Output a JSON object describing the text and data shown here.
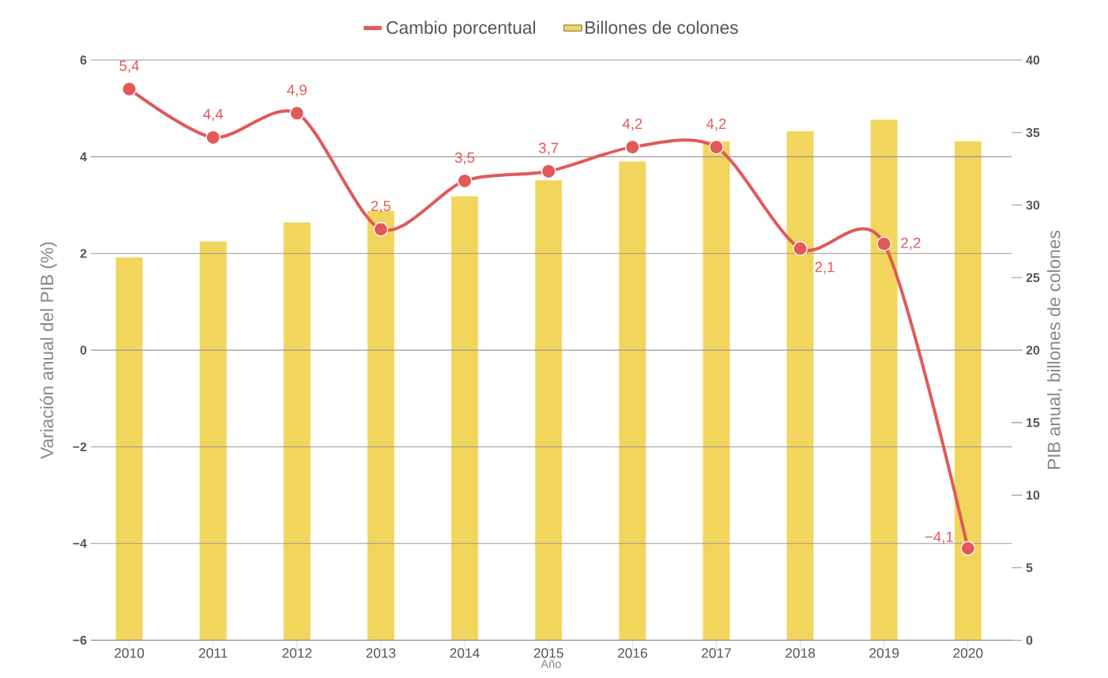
{
  "chart_data": {
    "type": "bar",
    "categories": [
      "2010",
      "2011",
      "2012",
      "2013",
      "2014",
      "2015",
      "2016",
      "2017",
      "2018",
      "2019",
      "2020"
    ],
    "series": [
      {
        "name": "Cambio porcentual",
        "type": "line",
        "color": "#e05a5a",
        "values": [
          5.4,
          4.4,
          4.9,
          2.5,
          3.5,
          3.7,
          4.2,
          4.2,
          2.1,
          2.2,
          -4.1
        ],
        "value_labels": [
          "5,4",
          "4,4",
          "4,9",
          "2,5",
          "3,5",
          "3,7",
          "4,2",
          "4,2",
          "2,1",
          "2,2",
          "−4,1"
        ],
        "marker": "circle"
      },
      {
        "name": "Billones de colones",
        "axis": "y2",
        "color": "#f2d55c",
        "values": [
          26.4,
          27.5,
          28.8,
          29.6,
          30.6,
          31.7,
          33.0,
          34.4,
          35.1,
          35.9,
          34.4
        ]
      }
    ],
    "xlabel": "Año",
    "ylabel": "Variación anual del PIB (%)",
    "y2label": "PIB anual, billones de colones",
    "ylim": [
      -6,
      6
    ],
    "yticks": [
      {
        "value": -6,
        "label": "−6"
      },
      {
        "value": -4,
        "label": "−4"
      },
      {
        "value": -2,
        "label": "−2"
      },
      0,
      2,
      4,
      6
    ],
    "y2lim": [
      0,
      40
    ],
    "y2ticks": [
      0,
      5,
      10,
      15,
      20,
      25,
      30,
      35,
      40
    ],
    "grid": "y",
    "legend": "top"
  }
}
